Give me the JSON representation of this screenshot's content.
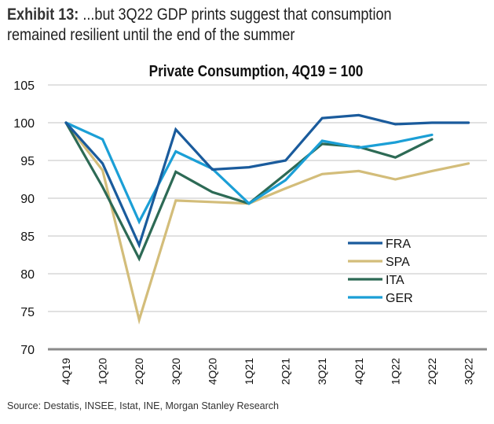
{
  "header": {
    "exhibit_label": "Exhibit 13:",
    "line1_text": " ...but 3Q22 GDP prints suggest that consumption",
    "line2_text": "remained resilient until the end of the summer"
  },
  "source": "Source: Destatis, INSEE, Istat, INE, Morgan Stanley Research",
  "chart_data": {
    "type": "line",
    "title": "Private Consumption, 4Q19 = 100",
    "xlabel": "",
    "ylabel": "",
    "categories": [
      "4Q19",
      "1Q20",
      "2Q20",
      "3Q20",
      "4Q20",
      "1Q21",
      "2Q21",
      "3Q21",
      "4Q21",
      "1Q22",
      "2Q22",
      "3Q22"
    ],
    "ylim": [
      70,
      105
    ],
    "yticks": [
      70,
      75,
      80,
      85,
      90,
      95,
      100,
      105
    ],
    "grid": true,
    "legend_position": "center-right",
    "series": [
      {
        "name": "FRA",
        "color": "#1a5b9c",
        "values": [
          100,
          94.6,
          83.8,
          99.1,
          93.8,
          94.1,
          95.0,
          100.6,
          101.0,
          99.8,
          100.0,
          100.0
        ]
      },
      {
        "name": "SPA",
        "color": "#d3bd7a",
        "values": [
          100,
          93.7,
          73.9,
          89.7,
          89.5,
          89.3,
          91.3,
          93.2,
          93.6,
          92.5,
          93.6,
          94.6
        ]
      },
      {
        "name": "ITA",
        "color": "#2d6a55",
        "values": [
          100,
          91.5,
          82.0,
          93.5,
          90.8,
          89.3,
          93.2,
          97.2,
          96.8,
          95.4,
          97.8,
          null
        ]
      },
      {
        "name": "GER",
        "color": "#1b9fd6",
        "values": [
          100,
          97.8,
          86.9,
          96.2,
          93.9,
          89.3,
          92.4,
          97.6,
          96.7,
          97.4,
          98.4,
          null
        ]
      }
    ]
  }
}
